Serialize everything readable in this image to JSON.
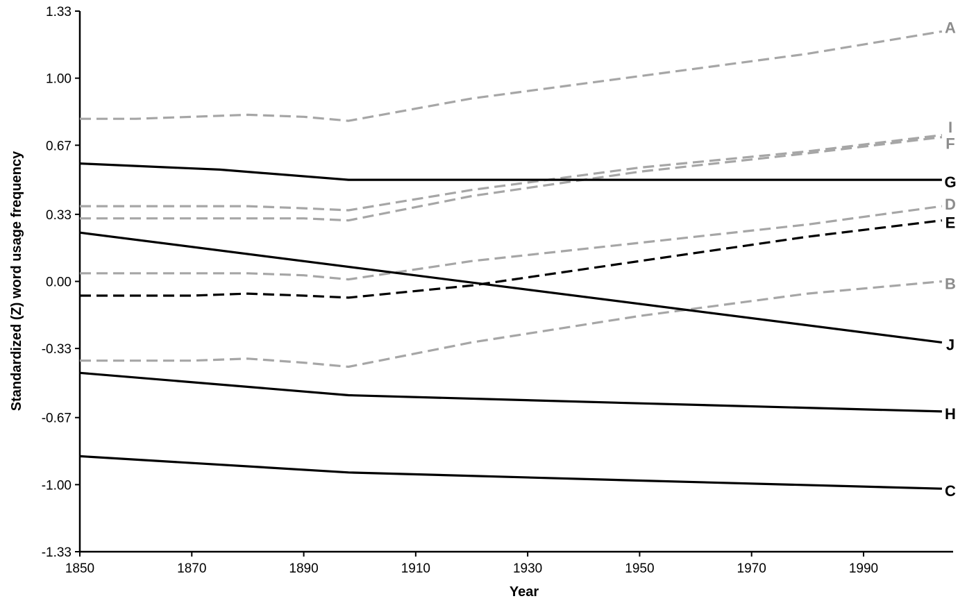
{
  "chart_data": {
    "type": "line",
    "title": "",
    "xlabel": "Year",
    "ylabel": "Standardized (Z) word usage frequency",
    "xlim": [
      1850,
      2006
    ],
    "ylim": [
      -1.33,
      1.33
    ],
    "x_ticks": [
      1850,
      1870,
      1890,
      1910,
      1930,
      1950,
      1970,
      1990
    ],
    "x_tick_labels": [
      "1850",
      "1870",
      "1890",
      "1910",
      "1930",
      "1950",
      "1970",
      "1990"
    ],
    "y_ticks": [
      -1.33,
      -1.0,
      -0.67,
      -0.33,
      0.0,
      0.33,
      0.67,
      1.0,
      1.33
    ],
    "y_tick_labels": [
      "-1.33",
      "-1.00",
      "-0.67",
      "-0.33",
      "0.00",
      "0.33",
      "0.67",
      "1.00",
      "1.33"
    ],
    "grid": false,
    "legend": "none",
    "colors": {
      "black": "#000000",
      "gray": "#a6a6a6",
      "gray_label": "#8c8c8c"
    },
    "series": [
      {
        "name": "A",
        "style": "dashed",
        "color": "gray",
        "x": [
          1850,
          1860,
          1870,
          1880,
          1890,
          1898,
          1920,
          1950,
          1980,
          2004
        ],
        "y": [
          0.8,
          0.8,
          0.81,
          0.82,
          0.81,
          0.79,
          0.9,
          1.01,
          1.12,
          1.23
        ]
      },
      {
        "name": "I",
        "style": "dashed",
        "color": "gray",
        "x": [
          1850,
          1860,
          1870,
          1880,
          1890,
          1898,
          1920,
          1950,
          1980,
          2004
        ],
        "y": [
          0.37,
          0.37,
          0.37,
          0.37,
          0.36,
          0.35,
          0.45,
          0.56,
          0.64,
          0.72
        ]
      },
      {
        "name": "F",
        "style": "dashed",
        "color": "gray",
        "x": [
          1850,
          1860,
          1870,
          1880,
          1890,
          1898,
          1920,
          1950,
          1980,
          2004
        ],
        "y": [
          0.31,
          0.31,
          0.31,
          0.31,
          0.31,
          0.3,
          0.42,
          0.54,
          0.63,
          0.71
        ]
      },
      {
        "name": "G",
        "style": "solid",
        "color": "black",
        "x": [
          1850,
          1875,
          1898,
          1950,
          2004
        ],
        "y": [
          0.58,
          0.55,
          0.5,
          0.5,
          0.5
        ]
      },
      {
        "name": "D",
        "style": "dashed",
        "color": "gray",
        "x": [
          1850,
          1860,
          1870,
          1880,
          1890,
          1898,
          1920,
          1950,
          1980,
          2004
        ],
        "y": [
          0.04,
          0.04,
          0.04,
          0.04,
          0.03,
          0.01,
          0.1,
          0.19,
          0.28,
          0.37
        ]
      },
      {
        "name": "E",
        "style": "dashed",
        "color": "black",
        "x": [
          1850,
          1860,
          1870,
          1880,
          1890,
          1898,
          1920,
          1950,
          1980,
          2004
        ],
        "y": [
          -0.07,
          -0.07,
          -0.07,
          -0.06,
          -0.07,
          -0.08,
          -0.02,
          0.1,
          0.22,
          0.3
        ]
      },
      {
        "name": "B",
        "style": "dashed",
        "color": "gray",
        "x": [
          1850,
          1860,
          1870,
          1880,
          1890,
          1898,
          1920,
          1950,
          1980,
          2004
        ],
        "y": [
          -0.39,
          -0.39,
          -0.39,
          -0.38,
          -0.4,
          -0.42,
          -0.3,
          -0.17,
          -0.06,
          0.0
        ]
      },
      {
        "name": "J",
        "style": "solid",
        "color": "black",
        "x": [
          1850,
          2004
        ],
        "y": [
          0.24,
          -0.3
        ]
      },
      {
        "name": "H",
        "style": "solid",
        "color": "black",
        "x": [
          1850,
          1898,
          1950,
          2004
        ],
        "y": [
          -0.45,
          -0.56,
          -0.6,
          -0.64
        ]
      },
      {
        "name": "C",
        "style": "solid",
        "color": "black",
        "x": [
          1850,
          1898,
          1950,
          2004
        ],
        "y": [
          -0.86,
          -0.94,
          -0.98,
          -1.02
        ]
      }
    ],
    "series_labels": [
      {
        "name": "A",
        "y": 1.25,
        "color": "gray_label"
      },
      {
        "name": "I",
        "y": 0.76,
        "color": "gray_label"
      },
      {
        "name": "F",
        "y": 0.68,
        "color": "gray_label"
      },
      {
        "name": "G",
        "y": 0.49,
        "color": "black"
      },
      {
        "name": "D",
        "y": 0.38,
        "color": "gray_label"
      },
      {
        "name": "E",
        "y": 0.29,
        "color": "black"
      },
      {
        "name": "B",
        "y": -0.01,
        "color": "gray_label"
      },
      {
        "name": "J",
        "y": -0.31,
        "color": "black"
      },
      {
        "name": "H",
        "y": -0.65,
        "color": "black"
      },
      {
        "name": "C",
        "y": -1.03,
        "color": "black"
      }
    ]
  }
}
